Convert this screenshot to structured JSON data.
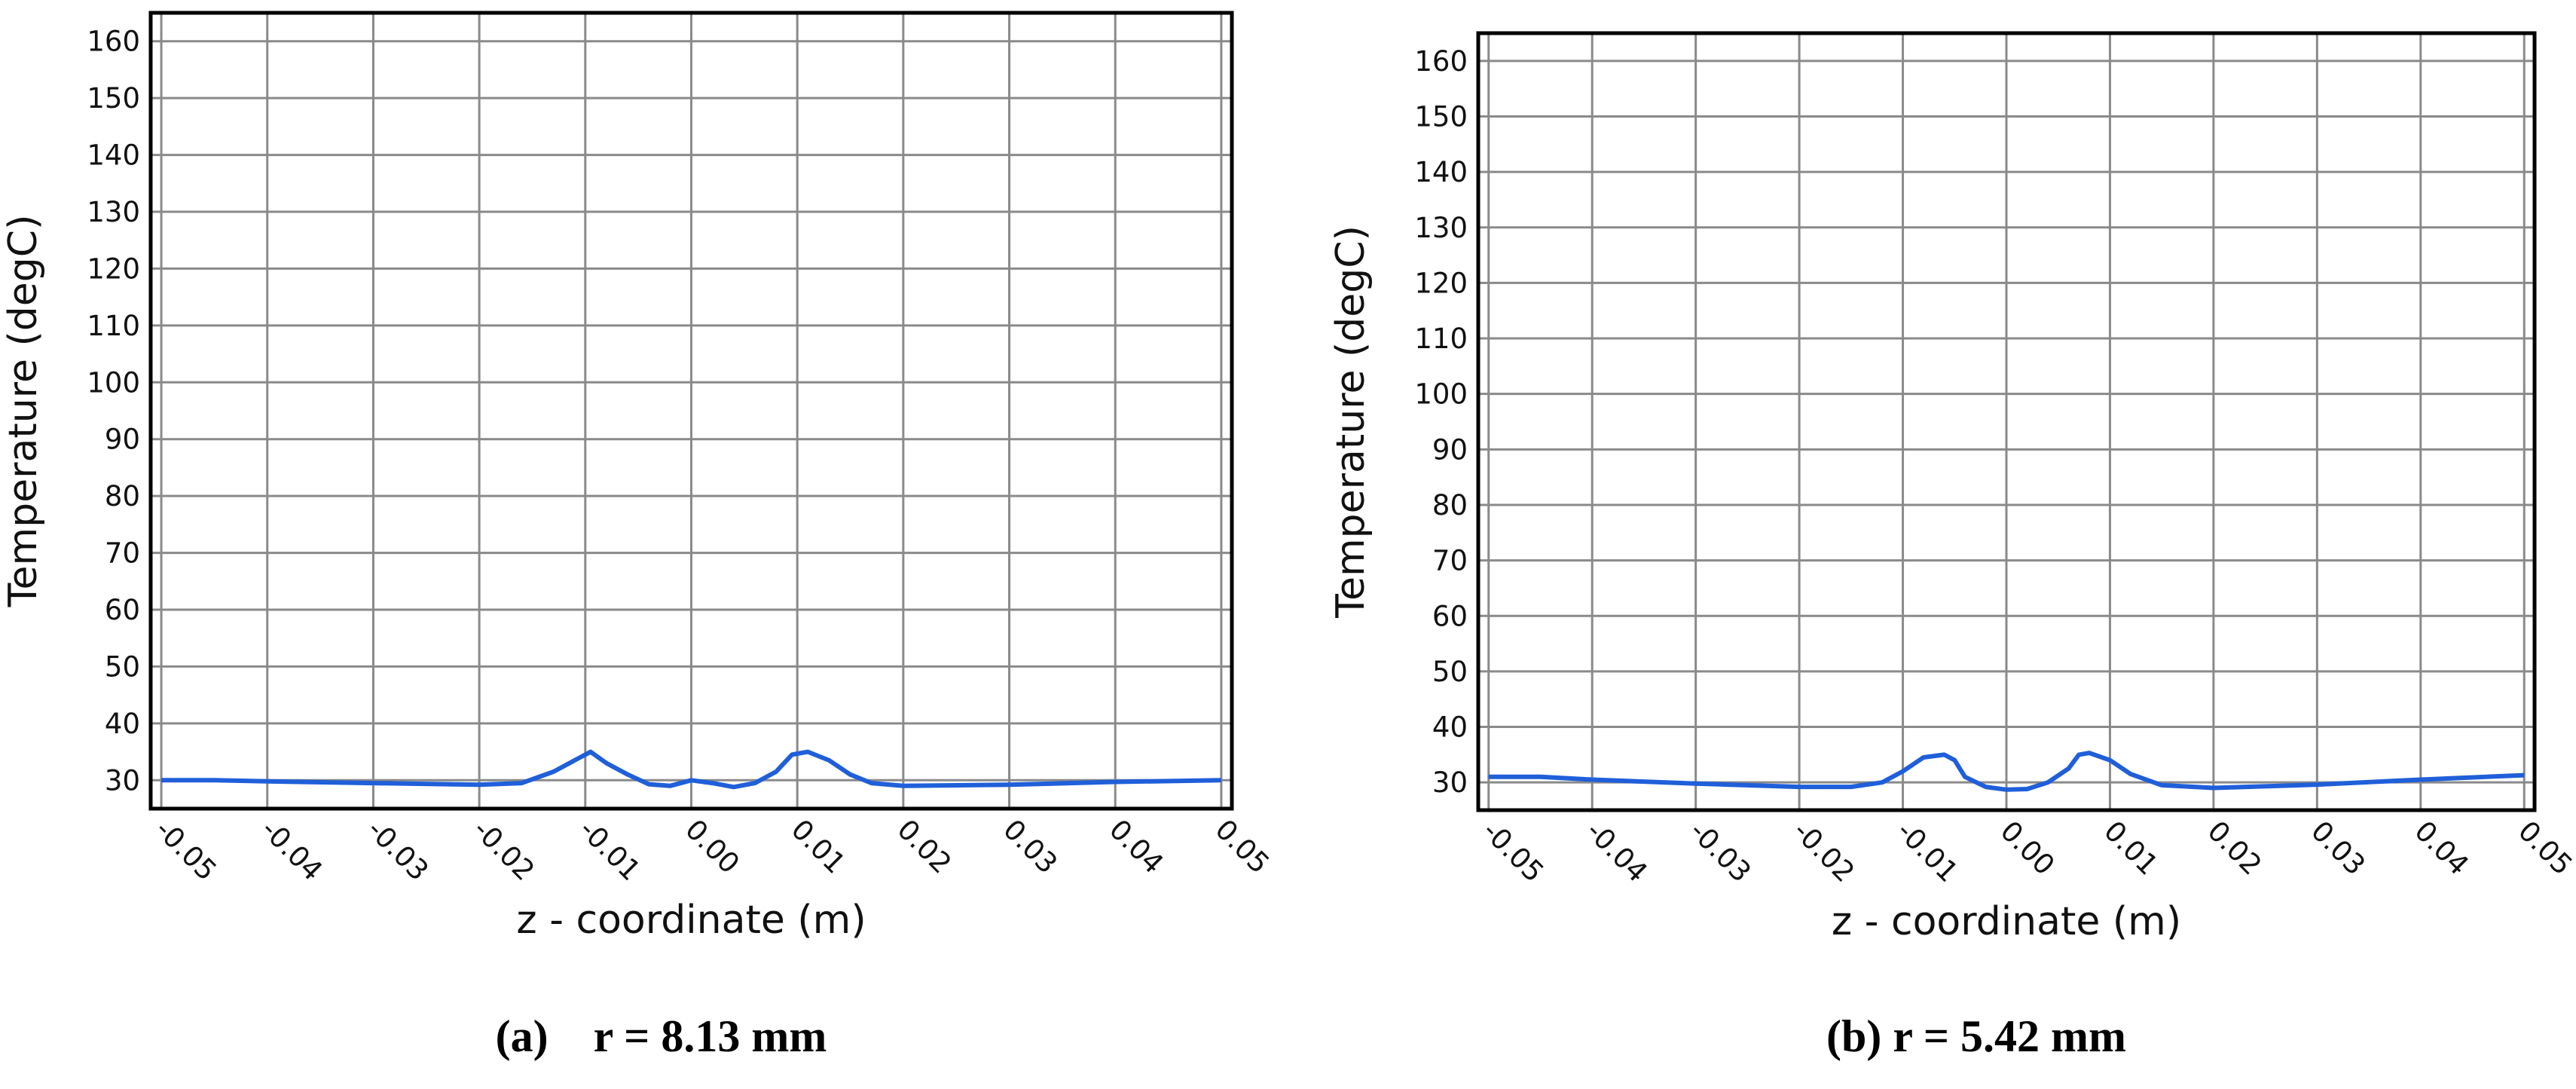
{
  "chart_data": [
    {
      "type": "line",
      "caption": "(a)    r = 8.13 mm",
      "x_label": "z - coordinate (m)",
      "y_label": "Temperature (degC)",
      "xlim": [
        -0.051,
        0.051
      ],
      "ylim": [
        25,
        165
      ],
      "xticks": [
        -0.05,
        -0.04,
        -0.03,
        -0.02,
        -0.01,
        {
          "value": 0,
          "label": "0.00"
        },
        0.01,
        0.02,
        0.03,
        0.04,
        0.05
      ],
      "yticks": [
        30,
        40,
        50,
        60,
        70,
        80,
        90,
        100,
        110,
        120,
        130,
        140,
        150,
        160
      ],
      "grid": true,
      "series": [
        {
          "color": "#1f5fd9",
          "x": [
            -0.05,
            -0.045,
            -0.04,
            -0.03,
            -0.02,
            -0.016,
            -0.013,
            -0.011,
            -0.0095,
            -0.008,
            -0.006,
            -0.004,
            -0.002,
            0,
            0.002,
            0.004,
            0.006,
            0.008,
            0.0095,
            0.011,
            0.013,
            0.015,
            0.017,
            0.02,
            0.03,
            0.04,
            0.05
          ],
          "values": [
            30,
            30,
            29.8,
            29.5,
            29.2,
            29.5,
            31.5,
            33.5,
            35,
            33,
            31,
            29.3,
            29,
            30,
            29.5,
            28.8,
            29.5,
            31.5,
            34.5,
            35,
            33.5,
            31,
            29.5,
            29,
            29.2,
            29.7,
            30
          ]
        }
      ]
    },
    {
      "type": "line",
      "caption": "(b) r = 5.42 mm",
      "x_label": "z - coordinate (m)",
      "y_label": "Temperature (degC)",
      "xlim": [
        -0.051,
        0.051
      ],
      "ylim": [
        25,
        165
      ],
      "xticks": [
        -0.05,
        -0.04,
        -0.03,
        -0.02,
        -0.01,
        {
          "value": 0,
          "label": "0.00"
        },
        0.01,
        0.02,
        0.03,
        0.04,
        0.05
      ],
      "yticks": [
        30,
        40,
        50,
        60,
        70,
        80,
        90,
        100,
        110,
        120,
        130,
        140,
        150,
        160
      ],
      "grid": true,
      "series": [
        {
          "color": "#1f5fd9",
          "x": [
            -0.05,
            -0.045,
            -0.04,
            -0.03,
            -0.02,
            -0.015,
            -0.012,
            -0.01,
            -0.008,
            -0.006,
            -0.005,
            -0.004,
            -0.002,
            0,
            0.002,
            0.004,
            0.006,
            0.007,
            0.008,
            0.01,
            0.012,
            0.015,
            0.02,
            0.03,
            0.04,
            0.05
          ],
          "values": [
            31,
            31,
            30.5,
            29.8,
            29.2,
            29.2,
            30,
            32,
            34.5,
            35,
            34,
            31,
            29.2,
            28.7,
            28.8,
            30,
            32.5,
            35,
            35.3,
            34,
            31.5,
            29.5,
            29,
            29.6,
            30.5,
            31.3
          ]
        }
      ]
    }
  ]
}
